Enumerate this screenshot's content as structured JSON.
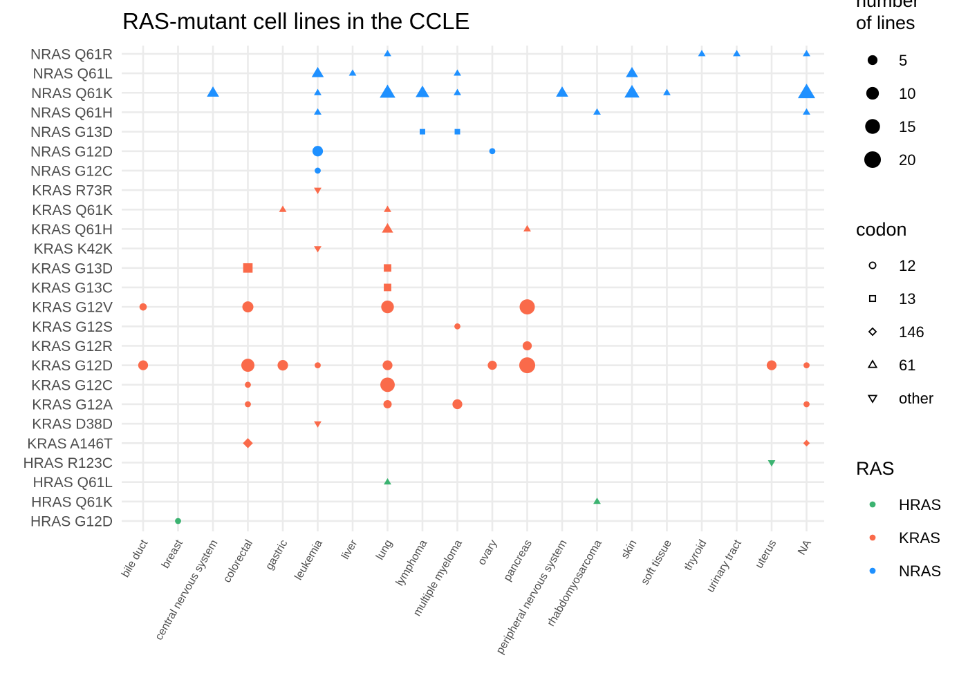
{
  "chart_data": {
    "type": "scatter",
    "title": "RAS-mutant cell lines in the CCLE",
    "xlabel": "",
    "ylabel": "",
    "x_categories": [
      "bile duct",
      "breast",
      "central nervous system",
      "colorectal",
      "gastric",
      "leukemia",
      "liver",
      "lung",
      "lymphoma",
      "multiple myeloma",
      "ovary",
      "pancreas",
      "peripheral nervous system",
      "rhabdomyosarcoma",
      "skin",
      "soft tissue",
      "thyroid",
      "urinary tract",
      "uterus",
      "NA"
    ],
    "y_categories": [
      "HRAS G12D",
      "HRAS Q61K",
      "HRAS Q61L",
      "HRAS R123C",
      "KRAS A146T",
      "KRAS D38D",
      "KRAS G12A",
      "KRAS G12C",
      "KRAS G12D",
      "KRAS G12R",
      "KRAS G12S",
      "KRAS G12V",
      "KRAS G13C",
      "KRAS G13D",
      "KRAS K42K",
      "KRAS Q61H",
      "KRAS Q61K",
      "KRAS R73R",
      "NRAS G12C",
      "NRAS G12D",
      "NRAS G13D",
      "NRAS Q61H",
      "NRAS Q61K",
      "NRAS Q61L",
      "NRAS Q61R"
    ],
    "grid": true,
    "legend_position": "right",
    "legends": [
      {
        "title": "number of lines",
        "type": "size",
        "labels": [
          "5",
          "10",
          "15",
          "20"
        ],
        "values": [
          5,
          10,
          15,
          20
        ]
      },
      {
        "title": "codon",
        "type": "shape",
        "labels": [
          "12",
          "13",
          "146",
          "61",
          "other"
        ],
        "shapes": [
          "circle",
          "square",
          "diamond",
          "triangle",
          "triangle-down"
        ]
      },
      {
        "title": "RAS",
        "type": "color",
        "labels": [
          "HRAS",
          "KRAS",
          "NRAS"
        ],
        "colors": [
          "#3cb371",
          "#fa6a4a",
          "#1e90ff"
        ]
      }
    ],
    "points": [
      {
        "x": "lung",
        "y": "NRAS Q61R",
        "n": 1,
        "ras": "NRAS",
        "codon": "61"
      },
      {
        "x": "thyroid",
        "y": "NRAS Q61R",
        "n": 1,
        "ras": "NRAS",
        "codon": "61"
      },
      {
        "x": "urinary tract",
        "y": "NRAS Q61R",
        "n": 1,
        "ras": "NRAS",
        "codon": "61"
      },
      {
        "x": "NA",
        "y": "NRAS Q61R",
        "n": 1,
        "ras": "NRAS",
        "codon": "61"
      },
      {
        "x": "leukemia",
        "y": "NRAS Q61L",
        "n": 5,
        "ras": "NRAS",
        "codon": "61"
      },
      {
        "x": "liver",
        "y": "NRAS Q61L",
        "n": 1,
        "ras": "NRAS",
        "codon": "61"
      },
      {
        "x": "multiple myeloma",
        "y": "NRAS Q61L",
        "n": 1,
        "ras": "NRAS",
        "codon": "61"
      },
      {
        "x": "skin",
        "y": "NRAS Q61L",
        "n": 5,
        "ras": "NRAS",
        "codon": "61"
      },
      {
        "x": "central nervous system",
        "y": "NRAS Q61K",
        "n": 5,
        "ras": "NRAS",
        "codon": "61"
      },
      {
        "x": "leukemia",
        "y": "NRAS Q61K",
        "n": 1,
        "ras": "NRAS",
        "codon": "61"
      },
      {
        "x": "lung",
        "y": "NRAS Q61K",
        "n": 10,
        "ras": "NRAS",
        "codon": "61"
      },
      {
        "x": "lymphoma",
        "y": "NRAS Q61K",
        "n": 7,
        "ras": "NRAS",
        "codon": "61"
      },
      {
        "x": "multiple myeloma",
        "y": "NRAS Q61K",
        "n": 1,
        "ras": "NRAS",
        "codon": "61"
      },
      {
        "x": "peripheral nervous system",
        "y": "NRAS Q61K",
        "n": 5,
        "ras": "NRAS",
        "codon": "61"
      },
      {
        "x": "skin",
        "y": "NRAS Q61K",
        "n": 9,
        "ras": "NRAS",
        "codon": "61"
      },
      {
        "x": "soft tissue",
        "y": "NRAS Q61K",
        "n": 1,
        "ras": "NRAS",
        "codon": "61"
      },
      {
        "x": "NA",
        "y": "NRAS Q61K",
        "n": 13,
        "ras": "NRAS",
        "codon": "61"
      },
      {
        "x": "leukemia",
        "y": "NRAS Q61H",
        "n": 1,
        "ras": "NRAS",
        "codon": "61"
      },
      {
        "x": "rhabdomyosarcoma",
        "y": "NRAS Q61H",
        "n": 1,
        "ras": "NRAS",
        "codon": "61"
      },
      {
        "x": "NA",
        "y": "NRAS Q61H",
        "n": 1,
        "ras": "NRAS",
        "codon": "61"
      },
      {
        "x": "lymphoma",
        "y": "NRAS G13D",
        "n": 1,
        "ras": "NRAS",
        "codon": "13"
      },
      {
        "x": "multiple myeloma",
        "y": "NRAS G13D",
        "n": 1,
        "ras": "NRAS",
        "codon": "13"
      },
      {
        "x": "leukemia",
        "y": "NRAS G12D",
        "n": 6,
        "ras": "NRAS",
        "codon": "12"
      },
      {
        "x": "ovary",
        "y": "NRAS G12D",
        "n": 1,
        "ras": "NRAS",
        "codon": "12"
      },
      {
        "x": "leukemia",
        "y": "NRAS G12C",
        "n": 1,
        "ras": "NRAS",
        "codon": "12"
      },
      {
        "x": "leukemia",
        "y": "KRAS R73R",
        "n": 1,
        "ras": "KRAS",
        "codon": "other"
      },
      {
        "x": "gastric",
        "y": "KRAS Q61K",
        "n": 1,
        "ras": "KRAS",
        "codon": "61"
      },
      {
        "x": "lung",
        "y": "KRAS Q61K",
        "n": 1,
        "ras": "KRAS",
        "codon": "61"
      },
      {
        "x": "lung",
        "y": "KRAS Q61H",
        "n": 4,
        "ras": "KRAS",
        "codon": "61"
      },
      {
        "x": "pancreas",
        "y": "KRAS Q61H",
        "n": 1,
        "ras": "KRAS",
        "codon": "61"
      },
      {
        "x": "leukemia",
        "y": "KRAS K42K",
        "n": 1,
        "ras": "KRAS",
        "codon": "other"
      },
      {
        "x": "colorectal",
        "y": "KRAS G13D",
        "n": 6,
        "ras": "KRAS",
        "codon": "13"
      },
      {
        "x": "lung",
        "y": "KRAS G13D",
        "n": 3,
        "ras": "KRAS",
        "codon": "13"
      },
      {
        "x": "lung",
        "y": "KRAS G13C",
        "n": 3,
        "ras": "KRAS",
        "codon": "13"
      },
      {
        "x": "bile duct",
        "y": "KRAS G12V",
        "n": 2,
        "ras": "KRAS",
        "codon": "12"
      },
      {
        "x": "colorectal",
        "y": "KRAS G12V",
        "n": 7,
        "ras": "KRAS",
        "codon": "12"
      },
      {
        "x": "lung",
        "y": "KRAS G12V",
        "n": 10,
        "ras": "KRAS",
        "codon": "12"
      },
      {
        "x": "pancreas",
        "y": "KRAS G12V",
        "n": 16,
        "ras": "KRAS",
        "codon": "12"
      },
      {
        "x": "multiple myeloma",
        "y": "KRAS G12S",
        "n": 1,
        "ras": "KRAS",
        "codon": "12"
      },
      {
        "x": "pancreas",
        "y": "KRAS G12R",
        "n": 4,
        "ras": "KRAS",
        "codon": "12"
      },
      {
        "x": "bile duct",
        "y": "KRAS G12D",
        "n": 5,
        "ras": "KRAS",
        "codon": "12"
      },
      {
        "x": "colorectal",
        "y": "KRAS G12D",
        "n": 11,
        "ras": "KRAS",
        "codon": "12"
      },
      {
        "x": "gastric",
        "y": "KRAS G12D",
        "n": 6,
        "ras": "KRAS",
        "codon": "12"
      },
      {
        "x": "leukemia",
        "y": "KRAS G12D",
        "n": 1,
        "ras": "KRAS",
        "codon": "12"
      },
      {
        "x": "lung",
        "y": "KRAS G12D",
        "n": 5,
        "ras": "KRAS",
        "codon": "12"
      },
      {
        "x": "ovary",
        "y": "KRAS G12D",
        "n": 4,
        "ras": "KRAS",
        "codon": "12"
      },
      {
        "x": "pancreas",
        "y": "KRAS G12D",
        "n": 18,
        "ras": "KRAS",
        "codon": "12"
      },
      {
        "x": "uterus",
        "y": "KRAS G12D",
        "n": 5,
        "ras": "KRAS",
        "codon": "12"
      },
      {
        "x": "NA",
        "y": "KRAS G12D",
        "n": 1,
        "ras": "KRAS",
        "codon": "12"
      },
      {
        "x": "colorectal",
        "y": "KRAS G12C",
        "n": 1,
        "ras": "KRAS",
        "codon": "12"
      },
      {
        "x": "lung",
        "y": "KRAS G12C",
        "n": 14,
        "ras": "KRAS",
        "codon": "12"
      },
      {
        "x": "colorectal",
        "y": "KRAS G12A",
        "n": 1,
        "ras": "KRAS",
        "codon": "12"
      },
      {
        "x": "lung",
        "y": "KRAS G12A",
        "n": 3,
        "ras": "KRAS",
        "codon": "12"
      },
      {
        "x": "multiple myeloma",
        "y": "KRAS G12A",
        "n": 5,
        "ras": "KRAS",
        "codon": "12"
      },
      {
        "x": "NA",
        "y": "KRAS G12A",
        "n": 1,
        "ras": "KRAS",
        "codon": "12"
      },
      {
        "x": "leukemia",
        "y": "KRAS D38D",
        "n": 1,
        "ras": "KRAS",
        "codon": "other"
      },
      {
        "x": "colorectal",
        "y": "KRAS A146T",
        "n": 4,
        "ras": "KRAS",
        "codon": "146"
      },
      {
        "x": "NA",
        "y": "KRAS A146T",
        "n": 1,
        "ras": "KRAS",
        "codon": "146"
      },
      {
        "x": "uterus",
        "y": "HRAS R123C",
        "n": 1,
        "ras": "HRAS",
        "codon": "other"
      },
      {
        "x": "lung",
        "y": "HRAS Q61L",
        "n": 1,
        "ras": "HRAS",
        "codon": "61"
      },
      {
        "x": "rhabdomyosarcoma",
        "y": "HRAS Q61K",
        "n": 1,
        "ras": "HRAS",
        "codon": "61"
      },
      {
        "x": "breast",
        "y": "HRAS G12D",
        "n": 1,
        "ras": "HRAS",
        "codon": "12"
      }
    ]
  }
}
